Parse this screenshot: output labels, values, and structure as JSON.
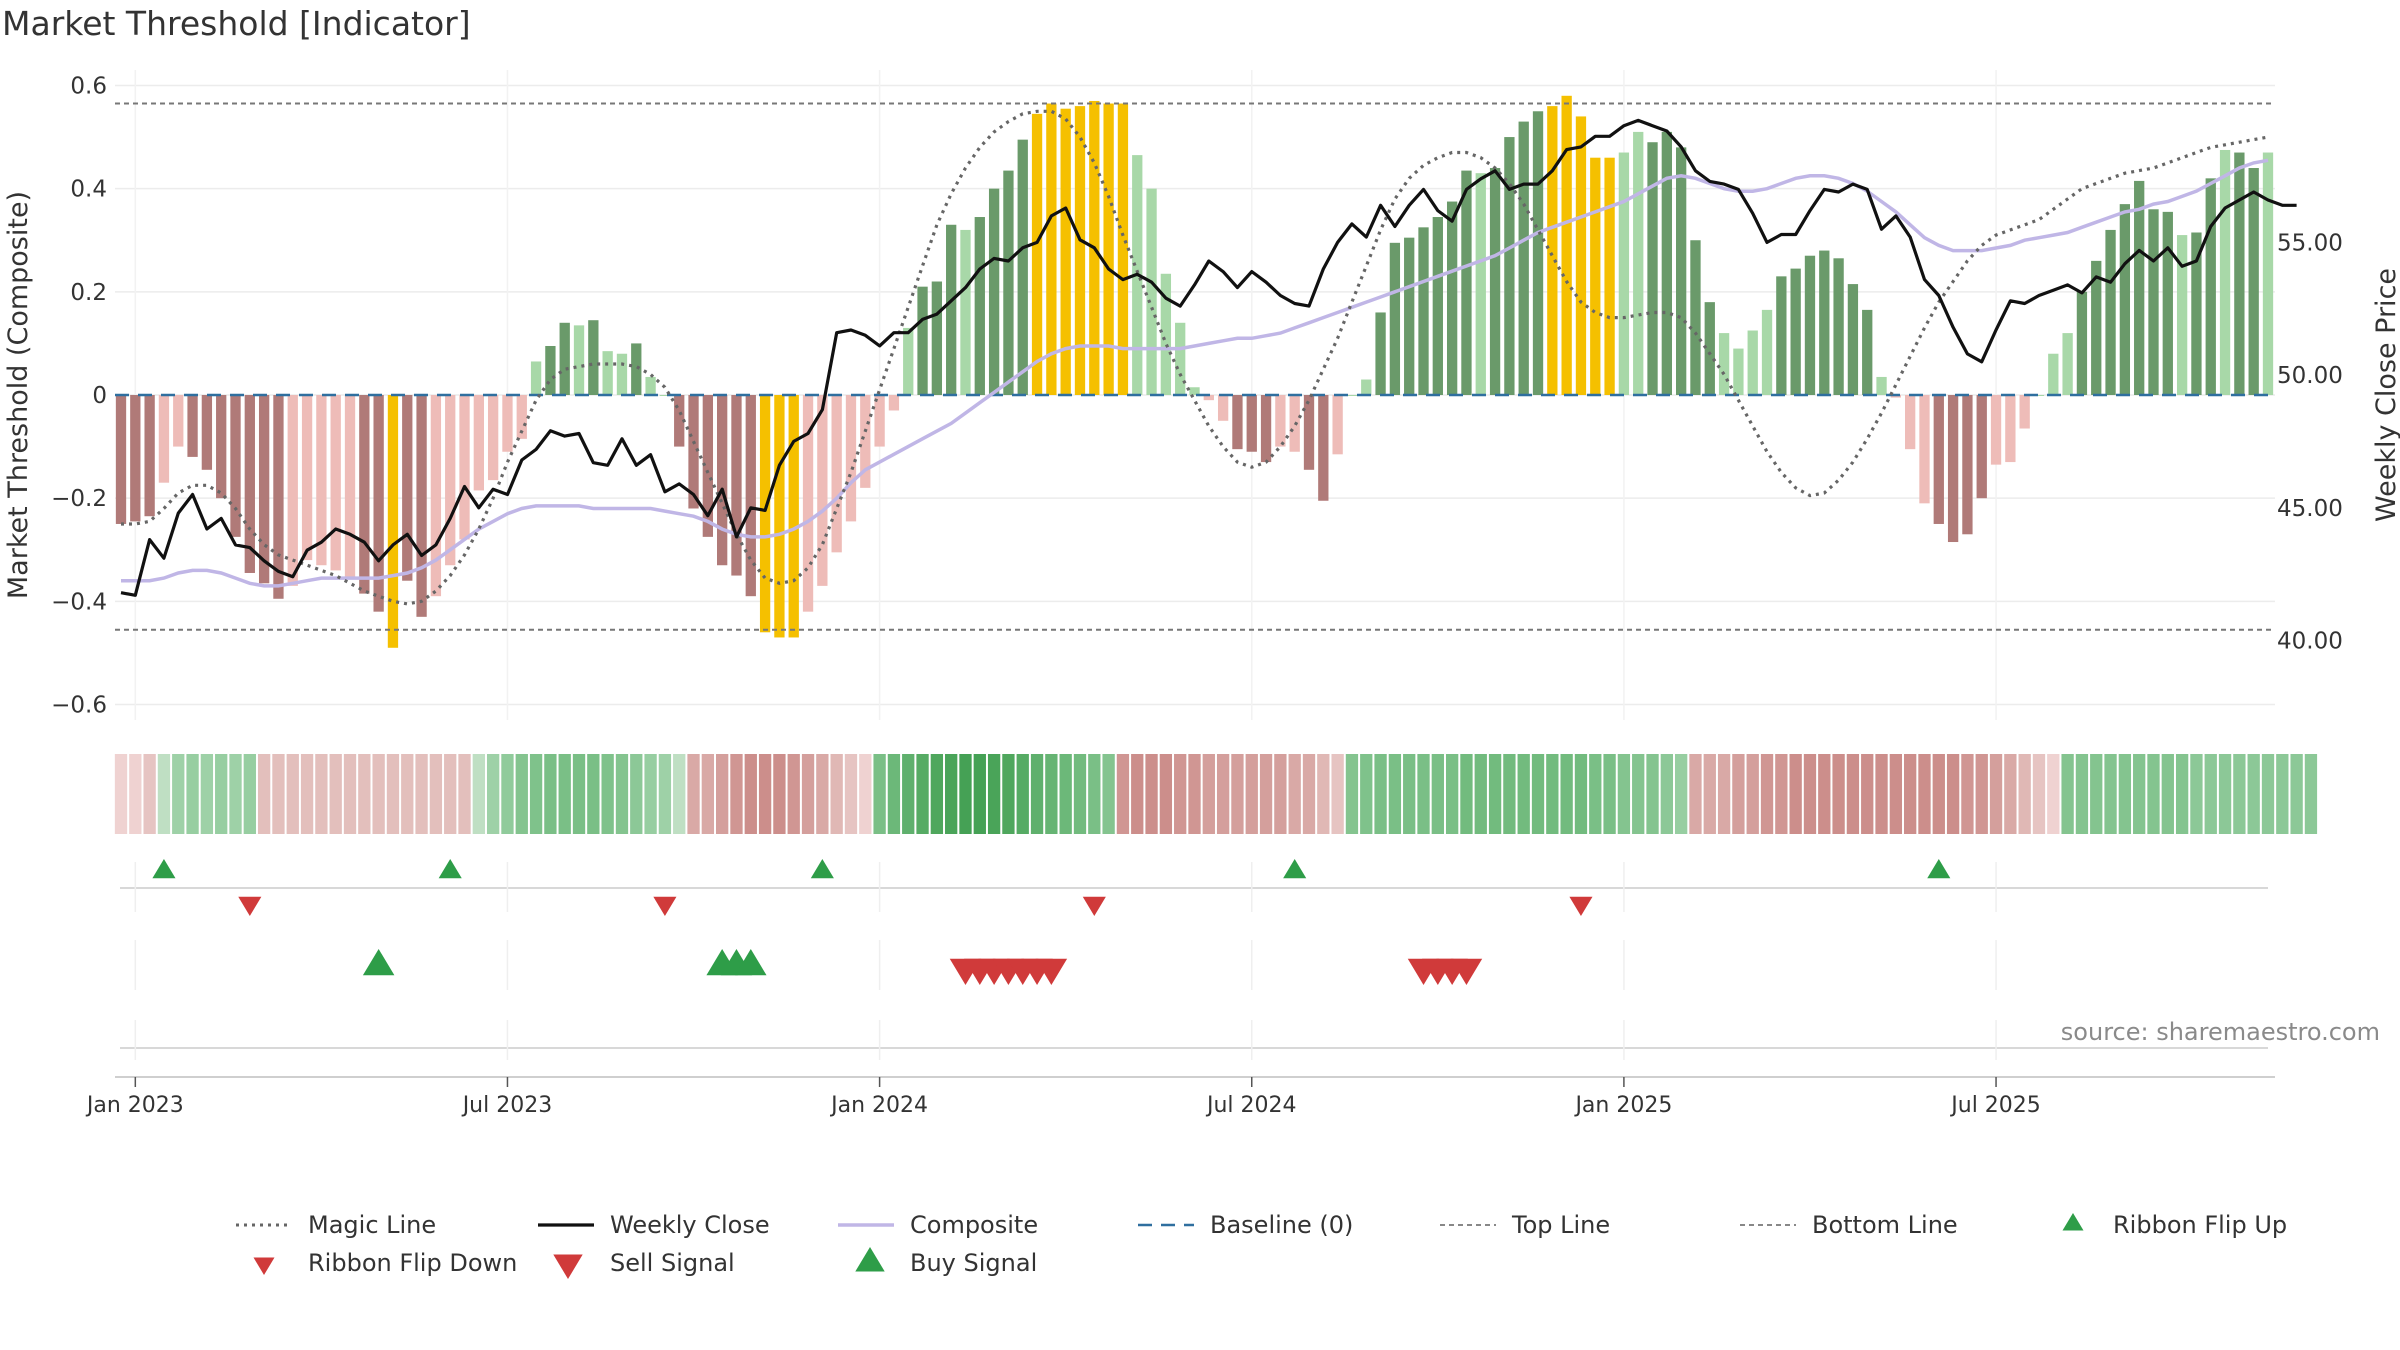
{
  "title": "Market Threshold [Indicator]",
  "source": "source: sharemaestro.com",
  "chart_data": {
    "type": "bar",
    "ylabel_left": "Market Threshold (Composite)",
    "ylabel_right": "Weekly Close Price",
    "left_ticks": [
      "0.6",
      "0.4",
      "0.2",
      "0",
      "−0.2",
      "−0.4",
      "−0.6"
    ],
    "left_tick_values": [
      0.6,
      0.4,
      0.2,
      0,
      -0.2,
      -0.4,
      -0.6
    ],
    "right_ticks": [
      "55.00",
      "50.00",
      "45.00",
      "40.00"
    ],
    "right_tick_values": [
      55,
      50,
      45,
      40
    ],
    "ylim_left": [
      -0.63,
      0.63
    ],
    "ylim_right": [
      37.0,
      61.5
    ],
    "x_ticks": [
      "Jan 2023",
      "Jul 2023",
      "Jan 2024",
      "Jul 2024",
      "Jan 2025",
      "Jul 2025"
    ],
    "x_tick_weeks": [
      1,
      27,
      53,
      79,
      105,
      131
    ],
    "top_line": 0.565,
    "bottom_line": -0.455,
    "legend": [
      "Magic Line",
      "Weekly Close",
      "Composite",
      "Baseline (0)",
      "Top Line",
      "Bottom Line",
      "Ribbon Flip Up",
      "Ribbon Flip Down",
      "Sell Signal",
      "Buy Signal"
    ],
    "colors": {
      "pos_strong": "#6a9a6a",
      "pos_light": "#a8d8a8",
      "neg_strong": "#b07a78",
      "neg_light": "#eebcb8",
      "extreme": "#f5c000",
      "close": "#111111",
      "composite": "#c0b6e6",
      "magic": "#666666",
      "baseline": "#2f6f9f",
      "up_marker": "#2e9d48",
      "down_marker": "#d03a3a"
    },
    "composite_bars": [
      -0.25,
      -0.245,
      -0.235,
      -0.17,
      -0.1,
      -0.12,
      -0.145,
      -0.2,
      -0.275,
      -0.345,
      -0.365,
      -0.395,
      -0.37,
      -0.32,
      -0.33,
      -0.34,
      -0.355,
      -0.385,
      -0.42,
      -0.49,
      -0.36,
      -0.43,
      -0.39,
      -0.33,
      -0.28,
      -0.185,
      -0.165,
      -0.11,
      -0.085,
      0.065,
      0.095,
      0.14,
      0.135,
      0.145,
      0.085,
      0.08,
      0.1,
      0.035,
      0.0,
      -0.1,
      -0.22,
      -0.275,
      -0.33,
      -0.35,
      -0.39,
      -0.46,
      -0.47,
      -0.47,
      -0.42,
      -0.37,
      -0.305,
      -0.245,
      -0.18,
      -0.1,
      -0.03,
      0.13,
      0.21,
      0.22,
      0.33,
      0.32,
      0.345,
      0.4,
      0.435,
      0.495,
      0.545,
      0.565,
      0.555,
      0.56,
      0.57,
      0.565,
      0.565,
      0.465,
      0.4,
      0.235,
      0.14,
      0.015,
      -0.01,
      -0.05,
      -0.105,
      -0.11,
      -0.13,
      -0.1,
      -0.11,
      -0.145,
      -0.205,
      -0.115,
      0.0,
      0.03,
      0.16,
      0.295,
      0.305,
      0.325,
      0.345,
      0.375,
      0.435,
      0.43,
      0.44,
      0.5,
      0.53,
      0.55,
      0.56,
      0.58,
      0.54,
      0.46,
      0.46,
      0.47,
      0.51,
      0.49,
      0.51,
      0.48,
      0.3,
      0.18,
      0.12,
      0.09,
      0.125,
      0.165,
      0.23,
      0.245,
      0.27,
      0.28,
      0.265,
      0.215,
      0.165,
      0.035,
      -0.005,
      -0.105,
      -0.21,
      -0.25,
      -0.285,
      -0.27,
      -0.2,
      -0.135,
      -0.13,
      -0.065,
      0.0,
      0.08,
      0.12,
      0.2,
      0.26,
      0.32,
      0.37,
      0.415,
      0.36,
      0.355,
      0.31,
      0.315,
      0.42,
      0.475,
      0.47,
      0.44,
      0.47
    ],
    "bar_shade": [
      "s",
      "s",
      "s",
      "l",
      "l",
      "s",
      "s",
      "s",
      "s",
      "s",
      "s",
      "s",
      "l",
      "l",
      "l",
      "l",
      "l",
      "s",
      "s",
      "x",
      "s",
      "s",
      "l",
      "l",
      "l",
      "l",
      "l",
      "l",
      "l",
      "l",
      "s",
      "s",
      "l",
      "s",
      "l",
      "l",
      "s",
      "l",
      "l",
      "s",
      "s",
      "s",
      "s",
      "s",
      "s",
      "x",
      "x",
      "x",
      "l",
      "l",
      "l",
      "l",
      "l",
      "l",
      "l",
      "l",
      "s",
      "s",
      "s",
      "l",
      "s",
      "s",
      "s",
      "s",
      "x",
      "x",
      "x",
      "x",
      "x",
      "x",
      "x",
      "l",
      "l",
      "l",
      "l",
      "l",
      "l",
      "l",
      "s",
      "s",
      "s",
      "l",
      "l",
      "s",
      "s",
      "l",
      "l",
      "l",
      "s",
      "s",
      "s",
      "s",
      "s",
      "s",
      "s",
      "l",
      "s",
      "s",
      "s",
      "s",
      "x",
      "x",
      "x",
      "x",
      "x",
      "l",
      "l",
      "s",
      "s",
      "s",
      "s",
      "s",
      "l",
      "l",
      "l",
      "l",
      "s",
      "s",
      "s",
      "s",
      "s",
      "s",
      "s",
      "l",
      "l",
      "l",
      "l",
      "s",
      "s",
      "s",
      "s",
      "l",
      "l",
      "l",
      "l",
      "l",
      "l",
      "s",
      "s",
      "s",
      "s",
      "s",
      "s",
      "s",
      "l",
      "s",
      "s",
      "l",
      "s",
      "s",
      "l",
      "l",
      "s",
      "s"
    ],
    "weekly_close": [
      41.8,
      41.7,
      43.8,
      43.1,
      44.8,
      45.5,
      44.2,
      44.6,
      43.6,
      43.5,
      43.0,
      42.6,
      42.4,
      43.4,
      43.7,
      44.2,
      44.0,
      43.7,
      43.0,
      43.6,
      44.0,
      43.2,
      43.6,
      44.6,
      45.8,
      45.0,
      45.7,
      45.5,
      46.8,
      47.2,
      47.9,
      47.7,
      47.8,
      46.7,
      46.6,
      47.6,
      46.6,
      47.0,
      45.6,
      45.9,
      45.5,
      44.7,
      45.7,
      43.9,
      45.0,
      44.9,
      46.6,
      47.5,
      47.8,
      48.7,
      51.6,
      51.7,
      51.5,
      51.1,
      51.6,
      51.6,
      52.1,
      52.3,
      52.8,
      53.3,
      54.0,
      54.4,
      54.3,
      54.8,
      55.0,
      56.0,
      56.3,
      55.1,
      54.8,
      54.0,
      53.6,
      53.8,
      53.5,
      52.9,
      52.6,
      53.4,
      54.3,
      53.9,
      53.3,
      53.9,
      53.5,
      53.0,
      52.7,
      52.6,
      54.0,
      55.0,
      55.7,
      55.2,
      56.4,
      55.6,
      56.4,
      57.0,
      56.2,
      55.8,
      57.0,
      57.4,
      57.7,
      57.0,
      57.2,
      57.2,
      57.7,
      58.5,
      58.6,
      59.0,
      59.0,
      59.4,
      59.6,
      59.4,
      59.2,
      58.6,
      57.7,
      57.3,
      57.2,
      57.0,
      56.1,
      55.0,
      55.3,
      55.3,
      56.2,
      57.0,
      56.9,
      57.2,
      57.0,
      55.5,
      56.0,
      55.2,
      53.6,
      53.0,
      51.8,
      50.8,
      50.5,
      51.7,
      52.8,
      52.7,
      53.0,
      53.2,
      53.4,
      53.1,
      53.7,
      53.5,
      54.2,
      54.7,
      54.3,
      54.8,
      54.1,
      54.3,
      55.6,
      56.3,
      56.6,
      56.9,
      56.6,
      56.4,
      56.4
    ],
    "composite_line": [
      -0.36,
      -0.36,
      -0.36,
      -0.355,
      -0.345,
      -0.34,
      -0.34,
      -0.345,
      -0.355,
      -0.365,
      -0.37,
      -0.37,
      -0.365,
      -0.36,
      -0.355,
      -0.355,
      -0.355,
      -0.355,
      -0.355,
      -0.35,
      -0.345,
      -0.335,
      -0.32,
      -0.3,
      -0.28,
      -0.26,
      -0.245,
      -0.23,
      -0.22,
      -0.215,
      -0.215,
      -0.215,
      -0.215,
      -0.22,
      -0.22,
      -0.22,
      -0.22,
      -0.22,
      -0.225,
      -0.23,
      -0.235,
      -0.245,
      -0.26,
      -0.27,
      -0.275,
      -0.275,
      -0.27,
      -0.26,
      -0.245,
      -0.225,
      -0.2,
      -0.17,
      -0.145,
      -0.13,
      -0.115,
      -0.1,
      -0.085,
      -0.07,
      -0.055,
      -0.035,
      -0.015,
      0.005,
      0.025,
      0.045,
      0.065,
      0.08,
      0.09,
      0.095,
      0.095,
      0.095,
      0.09,
      0.09,
      0.09,
      0.09,
      0.09,
      0.095,
      0.1,
      0.105,
      0.11,
      0.11,
      0.115,
      0.12,
      0.13,
      0.14,
      0.15,
      0.16,
      0.17,
      0.18,
      0.19,
      0.2,
      0.21,
      0.22,
      0.23,
      0.24,
      0.25,
      0.26,
      0.27,
      0.285,
      0.3,
      0.315,
      0.325,
      0.335,
      0.345,
      0.355,
      0.365,
      0.375,
      0.39,
      0.405,
      0.42,
      0.425,
      0.42,
      0.41,
      0.4,
      0.395,
      0.395,
      0.4,
      0.41,
      0.42,
      0.425,
      0.425,
      0.42,
      0.41,
      0.395,
      0.375,
      0.355,
      0.33,
      0.305,
      0.29,
      0.28,
      0.28,
      0.28,
      0.285,
      0.29,
      0.3,
      0.305,
      0.31,
      0.315,
      0.325,
      0.335,
      0.345,
      0.355,
      0.36,
      0.37,
      0.375,
      0.385,
      0.395,
      0.41,
      0.425,
      0.44,
      0.45,
      0.455
    ],
    "magic_line": [
      -0.25,
      -0.25,
      -0.245,
      -0.22,
      -0.19,
      -0.175,
      -0.175,
      -0.19,
      -0.22,
      -0.26,
      -0.29,
      -0.31,
      -0.32,
      -0.33,
      -0.34,
      -0.35,
      -0.365,
      -0.38,
      -0.39,
      -0.4,
      -0.405,
      -0.4,
      -0.38,
      -0.35,
      -0.31,
      -0.26,
      -0.2,
      -0.13,
      -0.07,
      -0.01,
      0.03,
      0.05,
      0.055,
      0.06,
      0.06,
      0.06,
      0.055,
      0.04,
      0.015,
      -0.03,
      -0.09,
      -0.15,
      -0.21,
      -0.27,
      -0.32,
      -0.355,
      -0.365,
      -0.36,
      -0.335,
      -0.29,
      -0.22,
      -0.15,
      -0.07,
      0.01,
      0.09,
      0.17,
      0.25,
      0.33,
      0.39,
      0.44,
      0.48,
      0.51,
      0.53,
      0.545,
      0.55,
      0.55,
      0.535,
      0.5,
      0.45,
      0.385,
      0.31,
      0.24,
      0.17,
      0.1,
      0.04,
      -0.01,
      -0.06,
      -0.1,
      -0.13,
      -0.14,
      -0.13,
      -0.1,
      -0.06,
      -0.01,
      0.05,
      0.11,
      0.18,
      0.25,
      0.32,
      0.38,
      0.42,
      0.445,
      0.46,
      0.47,
      0.47,
      0.46,
      0.44,
      0.41,
      0.37,
      0.32,
      0.27,
      0.22,
      0.18,
      0.16,
      0.15,
      0.15,
      0.155,
      0.16,
      0.16,
      0.15,
      0.12,
      0.08,
      0.04,
      -0.01,
      -0.06,
      -0.11,
      -0.15,
      -0.18,
      -0.195,
      -0.19,
      -0.165,
      -0.13,
      -0.085,
      -0.035,
      0.02,
      0.075,
      0.13,
      0.18,
      0.22,
      0.26,
      0.29,
      0.31,
      0.32,
      0.33,
      0.34,
      0.36,
      0.38,
      0.4,
      0.41,
      0.42,
      0.43,
      0.435,
      0.44,
      0.45,
      0.46,
      0.47,
      0.48,
      0.485,
      0.49,
      0.495,
      0.5
    ],
    "ribbon_colors": [
      "#efd2d1",
      "#efd2d1",
      "#e6c4c2",
      "#bfdfc3",
      "#9ed1a7",
      "#97cea1",
      "#9ed1a7",
      "#97cea1",
      "#9ed1a7",
      "#97cea1",
      "#e3bfbc",
      "#e3bfbc",
      "#e3bfbc",
      "#e3bfbc",
      "#e3bfbc",
      "#e3bfbc",
      "#e3bfbc",
      "#e3bfbc",
      "#e3bfbc",
      "#e3bfbc",
      "#e3bfbc",
      "#e3bfbc",
      "#e3bfbc",
      "#e3bfbc",
      "#e3bfbc",
      "#bfdfc3",
      "#9ed1a7",
      "#90cb9b",
      "#84c48f",
      "#7fc28b",
      "#7abf86",
      "#7abf86",
      "#7abf86",
      "#7abf86",
      "#7fc28b",
      "#84c48f",
      "#8cc897",
      "#97cea1",
      "#9ed1a7",
      "#bfdfc3",
      "#d9a9a6",
      "#d9a9a6",
      "#d49f9c",
      "#d09693",
      "#cc8e8b",
      "#cc8e8b",
      "#cc8e8b",
      "#d09693",
      "#d49f9c",
      "#d9a9a6",
      "#e0b8b5",
      "#e6c4c2",
      "#efd2d1",
      "#7abf86",
      "#6cb879",
      "#5fb06d",
      "#56ab64",
      "#4fa75d",
      "#4aa459",
      "#45a155",
      "#45a155",
      "#4aa459",
      "#4fa75d",
      "#56ab64",
      "#5fb06d",
      "#66b473",
      "#6cb879",
      "#72bb7e",
      "#7abf86",
      "#84c48f",
      "#d09693",
      "#cc8e8b",
      "#cc8e8b",
      "#cc8e8b",
      "#d09693",
      "#d09693",
      "#d49f9c",
      "#d49f9c",
      "#d49f9c",
      "#d49f9c",
      "#d49f9c",
      "#d49f9c",
      "#d9a9a6",
      "#d9a9a6",
      "#e0b8b5",
      "#e6c4c2",
      "#84c48f",
      "#7fc28b",
      "#7abf86",
      "#7abf86",
      "#7abf86",
      "#7abf86",
      "#7abf86",
      "#7abf86",
      "#72bb7e",
      "#72bb7e",
      "#72bb7e",
      "#72bb7e",
      "#72bb7e",
      "#72bb7e",
      "#72bb7e",
      "#72bb7e",
      "#72bb7e",
      "#7abf86",
      "#7abf86",
      "#84c48f",
      "#84c48f",
      "#84c48f",
      "#8cc897",
      "#97cea1",
      "#d9a9a6",
      "#d9a9a6",
      "#d9a9a6",
      "#d49f9c",
      "#d49f9c",
      "#d09693",
      "#d09693",
      "#cc8e8b",
      "#cc8e8b",
      "#cc8e8b",
      "#cc8e8b",
      "#cc8e8b",
      "#cc8e8b",
      "#cc8e8b",
      "#cc8e8b",
      "#cc8e8b",
      "#cc8e8b",
      "#cc8e8b",
      "#cc8e8b",
      "#d09693",
      "#d09693",
      "#d49f9c",
      "#d9a9a6",
      "#e0b8b5",
      "#e6c4c2",
      "#efd2d1",
      "#84c48f",
      "#84c48f",
      "#84c48f",
      "#84c48f",
      "#84c48f",
      "#84c48f",
      "#84c48f",
      "#84c48f",
      "#84c48f",
      "#8cc897",
      "#8cc897",
      "#8cc897",
      "#8cc897",
      "#8cc897",
      "#8cc897",
      "#8cc897",
      "#8cc897",
      "#8cc897"
    ],
    "ribbon_flip_up_weeks": [
      3,
      23,
      49,
      82,
      127
    ],
    "ribbon_flip_down_weeks": [
      9,
      38,
      68,
      102
    ],
    "buy_signal_weeks": [
      18,
      42,
      43,
      44
    ],
    "sell_signal_weeks": [
      59,
      60,
      61,
      62,
      63,
      64,
      65,
      91,
      92,
      93,
      94
    ]
  }
}
